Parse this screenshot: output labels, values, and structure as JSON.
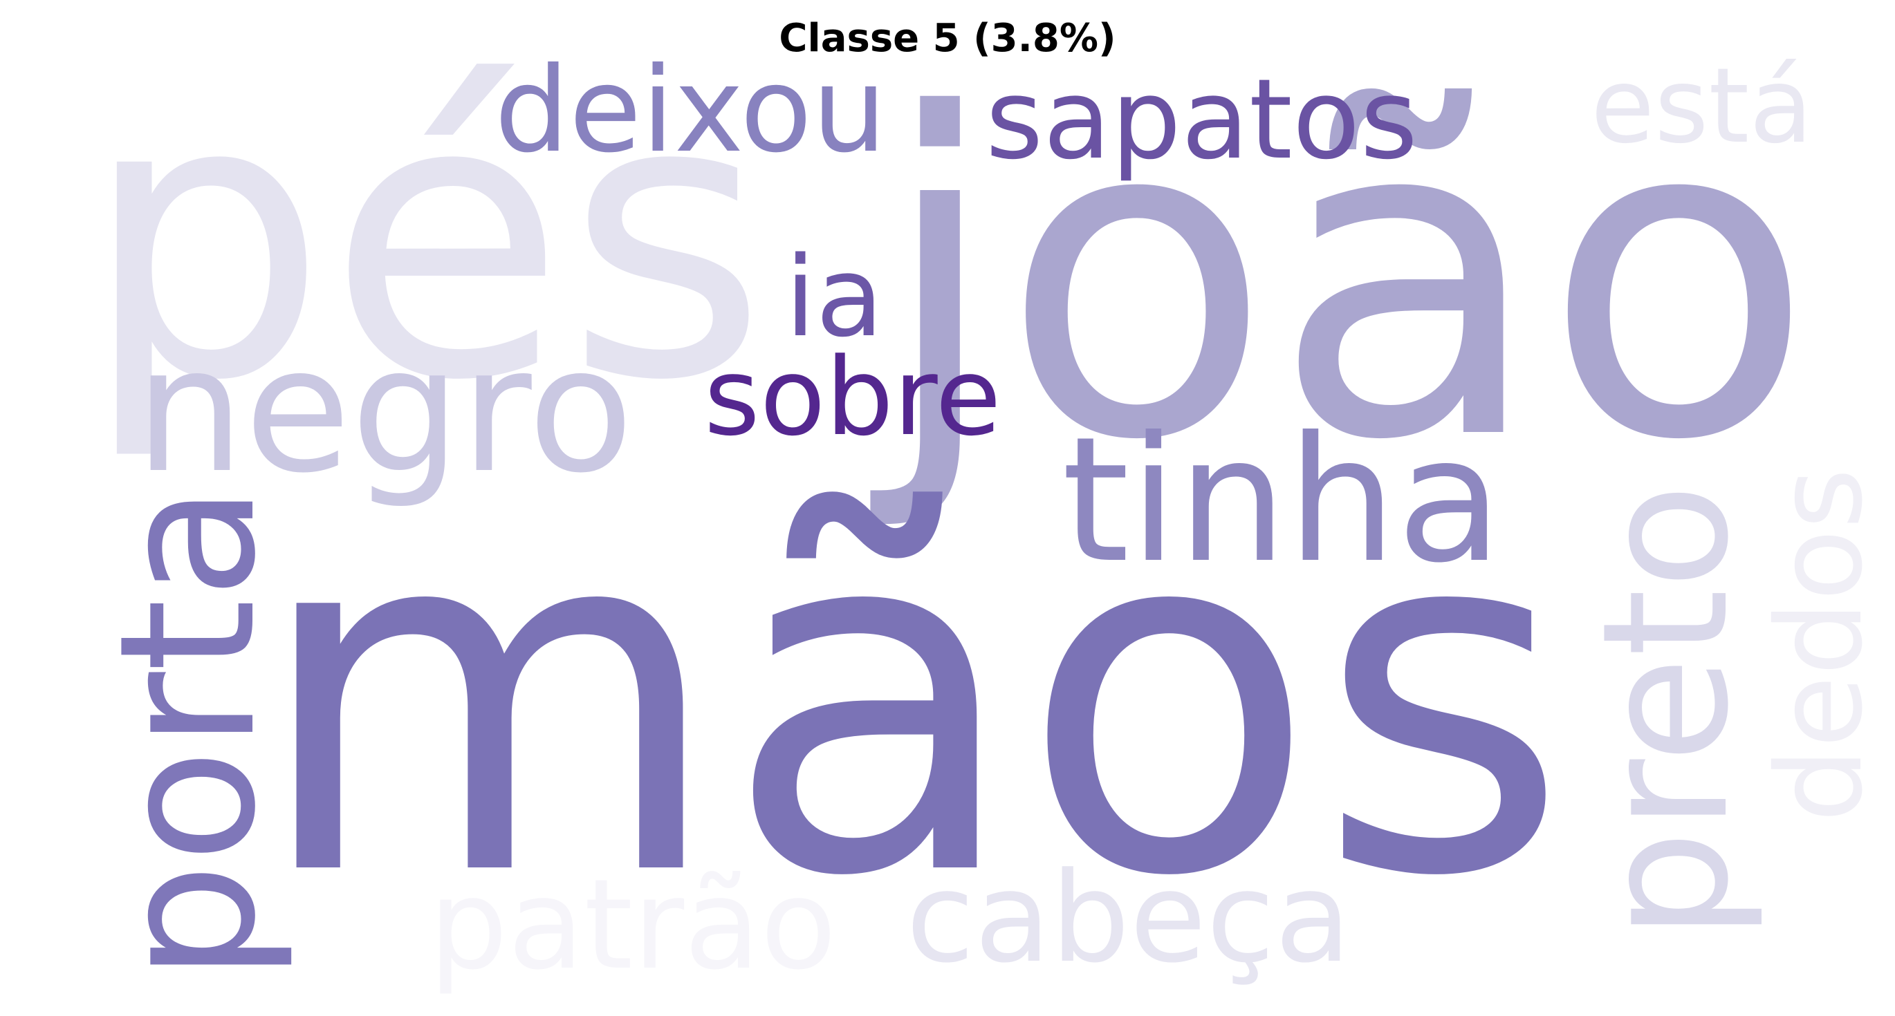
{
  "title": "Classe 5 (3.8%)",
  "colormap": "Purples",
  "words": [
    {
      "name": "word-maos",
      "text": "mãos",
      "color": "#7b73b6"
    },
    {
      "name": "word-joao",
      "text": "joão",
      "color": "#aaa6cf"
    },
    {
      "name": "word-pes",
      "text": "pés",
      "color": "#e4e3f0"
    },
    {
      "name": "word-negro",
      "text": "negro",
      "color": "#cac8e2"
    },
    {
      "name": "word-tinha",
      "text": "tinha",
      "color": "#8e88c0"
    },
    {
      "name": "word-porta",
      "text": "porta",
      "color": "#7f77b9"
    },
    {
      "name": "word-preto",
      "text": "preto",
      "color": "#d9d8ea"
    },
    {
      "name": "word-dedos",
      "text": "dedos",
      "color": "#f0eff6"
    },
    {
      "name": "word-deixou",
      "text": "deixou",
      "color": "#8882bf"
    },
    {
      "name": "word-sapatos",
      "text": "sapatos",
      "color": "#6a53a3"
    },
    {
      "name": "word-ia",
      "text": "ia",
      "color": "#6c57a7"
    },
    {
      "name": "word-sobre",
      "text": "sobre",
      "color": "#54278f"
    },
    {
      "name": "word-esta",
      "text": "está",
      "color": "#e9e8f2"
    },
    {
      "name": "word-patrao",
      "text": "patrão",
      "color": "#f6f5fa"
    },
    {
      "name": "word-cabeca",
      "text": "cabeça",
      "color": "#e6e5f1"
    }
  ]
}
